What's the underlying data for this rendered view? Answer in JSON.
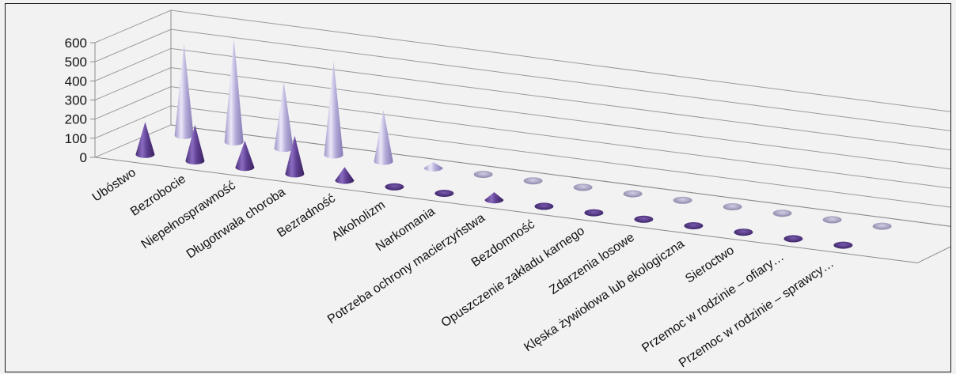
{
  "chart_data": {
    "type": "bar",
    "subtype": "3d-cone",
    "title": "",
    "xlabel": "",
    "ylabel": "",
    "ylim": [
      0,
      600
    ],
    "yticks": [
      0,
      100,
      200,
      300,
      400,
      500,
      600
    ],
    "grid": true,
    "legend": "none",
    "categories": [
      "Ubóstwo",
      "Bezrobocie",
      "Niepełnosprawność",
      "Długotrwała choroba",
      "Bezradność",
      "Alkoholizm",
      "Narkomania",
      "Potrzeba ochrony macierzyństwa",
      "Bezdomność",
      "Opuszczenie zakładu karnego",
      "Zdarzenia losowe",
      "Klęska żywiołowa lub ekologiczna",
      "Sieroctwo",
      "Przemoc w rodzinie – ofiary…",
      "Przemoc w rodzinie – sprawcy…"
    ],
    "series": [
      {
        "values": [
          170,
          190,
          140,
          200,
          70,
          10,
          8,
          40,
          8,
          4,
          8,
          6,
          10,
          6,
          6
        ],
        "color": "#6a4c9c"
      },
      {
        "values": [
          480,
          540,
          350,
          490,
          270,
          30,
          12,
          0,
          5,
          5,
          4,
          5,
          5,
          0,
          0
        ],
        "color": "#b9b0d8"
      }
    ]
  }
}
